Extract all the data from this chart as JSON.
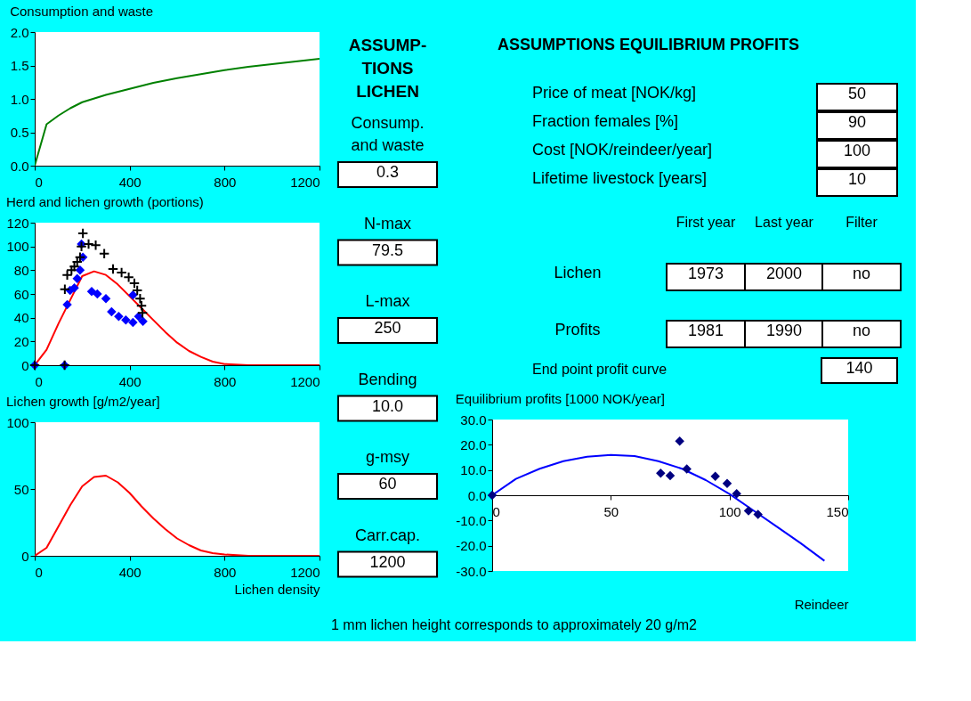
{
  "chart_data": [
    {
      "type": "line",
      "title": "Consumption and waste",
      "xlim": [
        0,
        1200
      ],
      "xticks": [
        0,
        400,
        800,
        1200
      ],
      "ylim": [
        0,
        2
      ],
      "yticks": [
        {
          "value": 0,
          "label": "0.0"
        },
        {
          "value": 0.5,
          "label": "0.5"
        },
        {
          "value": 1,
          "label": "1.0"
        },
        {
          "value": 1.5,
          "label": "1.5"
        },
        {
          "value": 2,
          "label": "2.0"
        }
      ],
      "series": [
        {
          "color": "#008000",
          "x": [
            0,
            50,
            100,
            150,
            200,
            300,
            400,
            500,
            600,
            700,
            800,
            900,
            1000,
            1100,
            1200
          ],
          "values": [
            0,
            0.62,
            0.75,
            0.86,
            0.95,
            1.06,
            1.15,
            1.24,
            1.31,
            1.37,
            1.43,
            1.48,
            1.52,
            1.56,
            1.6
          ]
        }
      ]
    },
    {
      "type": "line",
      "title": "Herd and lichen growth (portions)",
      "xlim": [
        0,
        1200
      ],
      "xticks": [
        0,
        400,
        800,
        1200
      ],
      "ylim": [
        0,
        120
      ],
      "yticks": [
        0,
        20,
        40,
        60,
        80,
        100,
        120
      ],
      "series": [
        {
          "color": "#ff0000",
          "x": [
            0,
            50,
            100,
            150,
            200,
            250,
            300,
            350,
            400,
            450,
            500,
            550,
            600,
            650,
            700,
            750,
            800,
            900,
            1000,
            1100,
            1200
          ],
          "values": [
            0,
            13,
            35,
            55,
            75,
            79,
            76,
            68,
            58,
            48,
            38,
            28,
            19,
            12,
            7,
            3,
            1,
            0,
            0,
            0,
            0
          ]
        },
        {
          "type": "scatter",
          "marker": "diamond",
          "color": "#0000ff",
          "x": [
            0,
            126,
            137,
            149,
            167,
            179,
            191,
            203,
            197,
            240,
            264,
            300,
            324,
            354,
            384,
            414,
            414,
            438,
            456
          ],
          "values": [
            0,
            0,
            51,
            63,
            65,
            73,
            80,
            91,
            102,
            62,
            60,
            56,
            45,
            41,
            38,
            36,
            59,
            41,
            37
          ]
        },
        {
          "type": "scatter",
          "marker": "cross",
          "color": "#000000",
          "x": [
            0,
            126,
            127,
            137,
            155,
            167,
            179,
            191,
            197,
            203,
            227,
            257,
            293,
            330,
            366,
            396,
            420,
            432,
            444,
            450,
            454
          ],
          "values": [
            0,
            0,
            64,
            76,
            80,
            83,
            87,
            91,
            100,
            111,
            102,
            101,
            94,
            81,
            78,
            74,
            69,
            63,
            56,
            50,
            44
          ]
        }
      ]
    },
    {
      "type": "line",
      "title": "Lichen growth [g/m2/year]",
      "xlabel": "Lichen density",
      "xlim": [
        0,
        1200
      ],
      "xticks": [
        0,
        400,
        800,
        1200
      ],
      "ylim": [
        0,
        100
      ],
      "yticks": [
        0,
        50,
        100
      ],
      "series": [
        {
          "color": "#ff0000",
          "x": [
            0,
            50,
            100,
            150,
            200,
            250,
            300,
            350,
            400,
            450,
            500,
            550,
            600,
            650,
            700,
            750,
            800,
            900,
            1000,
            1100,
            1200
          ],
          "values": [
            0,
            6,
            22,
            38,
            52,
            59,
            60,
            55,
            47,
            37,
            28,
            20,
            13,
            8,
            4,
            2,
            1,
            0,
            0,
            0,
            0
          ]
        }
      ]
    },
    {
      "type": "other",
      "title": "ASSUMP- TIONS LICHEN",
      "annotations": [
        "Consump. and waste",
        "0.3",
        "N-max",
        "79.5",
        "L-max",
        "250",
        "Bending",
        "10.0",
        "g-msy",
        "60",
        "Carr.cap.",
        "1200"
      ]
    },
    {
      "type": "other",
      "title": "ASSUMPTIONS EQUILIBRIUM PROFITS",
      "annotations": [
        "Price of meat [NOK/kg]",
        "50",
        "Fraction females [%]",
        "90",
        "Cost [NOK/reindeer/year]",
        "100",
        "Lifetime livestock [years]",
        "10"
      ]
    },
    {
      "type": "other",
      "annotations": [
        "First year",
        "Last year",
        "Filter",
        "Lichen",
        "1973",
        "2000",
        "no",
        "Profits",
        "1981",
        "1990",
        "no"
      ]
    },
    {
      "type": "other",
      "annotations": [
        "End point profit curve",
        "140"
      ]
    },
    {
      "type": "scatter",
      "title": "Equilibrium profits [1000 NOK/year]",
      "xlabel": "Reindeer",
      "xlim": [
        0,
        150
      ],
      "xticks": [
        0,
        50,
        100,
        150
      ],
      "ylim": [
        -30,
        30
      ],
      "yticks": [
        {
          "value": -30,
          "label": "-30.0"
        },
        {
          "value": -20,
          "label": "-20.0"
        },
        {
          "value": -10,
          "label": "-10.0"
        },
        {
          "value": 0,
          "label": "0.0"
        },
        {
          "value": 10,
          "label": "10.0"
        },
        {
          "value": 20,
          "label": "20.0"
        },
        {
          "value": 30,
          "label": "30.0"
        }
      ],
      "series": [
        {
          "type": "line",
          "color": "#0000ff",
          "x": [
            0,
            10,
            20,
            30,
            40,
            50,
            60,
            70,
            80,
            90,
            100,
            110,
            120,
            130,
            140
          ],
          "values": [
            0,
            6.5,
            10.5,
            13.5,
            15.3,
            16,
            15.5,
            13.5,
            10.5,
            6,
            0.5,
            -6,
            -12.5,
            -19,
            -26
          ]
        },
        {
          "marker": "diamond",
          "color": "#000080",
          "x": [
            0,
            71,
            75,
            79,
            82,
            94,
            99,
            103,
            108,
            112
          ],
          "values": [
            0,
            8.7,
            7.8,
            21.4,
            10.4,
            7.5,
            4.7,
            0.6,
            -6.2,
            -7.6
          ]
        }
      ]
    },
    {
      "type": "other",
      "annotations": [
        "1 mm lichen height corresponds to approximately 20 g/m2"
      ]
    }
  ]
}
